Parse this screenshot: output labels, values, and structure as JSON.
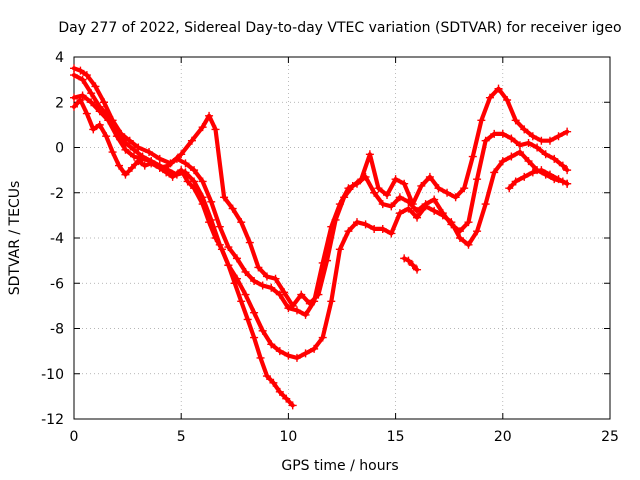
{
  "chart_data": {
    "type": "scatter",
    "title": "Day 277 of 2022, Sidereal Day-to-day VTEC variation (SDTVAR) for receiver igeo",
    "xlabel": "GPS time / hours",
    "ylabel": "SDTVAR / TECUs",
    "xlim": [
      0,
      25
    ],
    "ylim": [
      -12,
      4
    ],
    "xticks": [
      0,
      5,
      10,
      15,
      20,
      25
    ],
    "xtick_labels": [
      "0",
      "5",
      "10",
      "15",
      "20",
      "25"
    ],
    "yticks": [
      4,
      2,
      0,
      -2,
      -4,
      -6,
      -8,
      -10,
      -12
    ],
    "ytick_labels": [
      "4",
      "2",
      "0",
      "-2",
      "-4",
      "-6",
      "-8",
      "-10",
      "-12"
    ],
    "grid": true,
    "color": "#ff0000",
    "marker": "+",
    "series": [
      {
        "name": "trace-1",
        "x": [
          0,
          0.3,
          0.6,
          1,
          1.4,
          1.8,
          2.2,
          2.6,
          3,
          3.5,
          4,
          4.5,
          5,
          5.5,
          6,
          6.3,
          6.6,
          7,
          7.4,
          7.8,
          8.2,
          8.6,
          9,
          9.4,
          9.8,
          10.2,
          10.6,
          11,
          11.4,
          11.8,
          12.2,
          12.6,
          13,
          13.4,
          13.8,
          14.2,
          14.6,
          15,
          15.4,
          15.8,
          16.2,
          16.6,
          17,
          17.4,
          17.8,
          18.2,
          18.6,
          19,
          19.4,
          19.8,
          20.2,
          20.6,
          21,
          21.4,
          21.8,
          22.2,
          22.6,
          23
        ],
        "y": [
          3.5,
          3.4,
          3.2,
          2.7,
          2,
          1.2,
          0.6,
          0.3,
          0,
          -0.2,
          -0.5,
          -0.7,
          -0.3,
          0.3,
          0.9,
          1.4,
          0.8,
          -2.2,
          -2.7,
          -3.3,
          -4.2,
          -5.3,
          -5.7,
          -5.8,
          -6.4,
          -7,
          -6.5,
          -6.9,
          -6.5,
          -5,
          -3.2,
          -2.2,
          -1.7,
          -1.4,
          -0.3,
          -1.8,
          -2.1,
          -1.4,
          -1.6,
          -2.5,
          -1.7,
          -1.3,
          -1.8,
          -2,
          -2.2,
          -1.8,
          -0.4,
          1.2,
          2.2,
          2.6,
          2.1,
          1.2,
          0.8,
          0.5,
          0.3,
          0.3,
          0.5,
          0.7
        ]
      },
      {
        "name": "trace-2",
        "x": [
          0,
          0.4,
          0.8,
          1.2,
          1.6,
          2,
          2.4,
          2.8,
          3.2,
          3.6,
          4,
          4.4,
          4.8,
          5.2,
          5.6,
          6,
          6.4,
          6.8,
          7.2,
          7.6,
          8,
          8.4,
          8.8,
          9.2,
          9.6,
          10,
          10.4,
          10.8,
          11.2,
          11.6,
          12,
          12.4,
          12.8,
          13.2,
          13.6,
          14,
          14.4,
          14.8,
          15.2,
          15.6,
          16,
          16.4,
          16.8,
          17.2,
          17.6,
          18,
          18.4,
          18.8,
          19.2,
          19.6,
          20,
          20.4,
          20.8,
          21.2,
          21.6,
          22,
          22.4,
          22.8,
          23
        ],
        "y": [
          3.2,
          3,
          2.4,
          1.8,
          1.4,
          0.7,
          0.2,
          -0.1,
          -0.4,
          -0.6,
          -0.9,
          -0.8,
          -0.5,
          -0.7,
          -1,
          -1.5,
          -2.4,
          -3.5,
          -4.4,
          -4.9,
          -5.5,
          -5.9,
          -6.1,
          -6.2,
          -6.5,
          -7.1,
          -7.2,
          -7.4,
          -6.8,
          -5.1,
          -3.5,
          -2.5,
          -1.8,
          -1.6,
          -1.3,
          -2,
          -2.5,
          -2.6,
          -2.2,
          -2.4,
          -2.8,
          -2.5,
          -2.3,
          -2.9,
          -3.4,
          -3.7,
          -3.3,
          -1.4,
          0.3,
          0.6,
          0.6,
          0.4,
          0.1,
          0.2,
          0,
          -0.3,
          -0.5,
          -0.8,
          -1
        ]
      },
      {
        "name": "trace-3",
        "x": [
          0,
          0.4,
          0.8,
          1.2,
          1.6,
          2,
          2.4,
          2.8,
          3.2,
          3.6,
          4,
          4.4,
          4.8,
          5.2,
          5.6,
          6,
          6.4,
          6.8,
          7.2,
          7.6,
          8,
          8.4,
          8.8,
          9.2,
          9.6,
          10,
          10.4,
          10.8,
          11.2,
          11.6,
          12,
          12.4,
          12.8,
          13.2,
          13.6,
          14,
          14.4,
          14.8,
          15.2,
          15.6,
          16,
          16.4,
          16.8,
          17.2,
          17.6,
          18,
          18.4,
          18.8,
          19.2,
          19.6,
          20,
          20.4,
          20.8,
          21.2,
          21.6,
          22,
          22.4,
          22.8,
          23
        ],
        "y": [
          2.2,
          2.3,
          2,
          1.6,
          1.2,
          0.5,
          -0.1,
          -0.4,
          -0.5,
          -0.6,
          -0.8,
          -1,
          -1.2,
          -1.1,
          -1.5,
          -2.2,
          -3.2,
          -4.3,
          -5.2,
          -5.8,
          -6.5,
          -7.3,
          -8.1,
          -8.7,
          -9,
          -9.2,
          -9.3,
          -9.1,
          -8.9,
          -8.4,
          -6.8,
          -4.5,
          -3.7,
          -3.3,
          -3.4,
          -3.6,
          -3.6,
          -3.8,
          -2.9,
          -2.7,
          -3.1,
          -2.6,
          -2.8,
          -3,
          -3.3,
          -4,
          -4.3,
          -3.7,
          -2.5,
          -1.1,
          -0.6,
          -0.4,
          -0.2,
          -0.6,
          -1,
          -1.2,
          -1.4,
          -1.5,
          -1.6
        ]
      },
      {
        "name": "trace-4",
        "x": [
          0,
          0.3,
          0.6,
          0.9,
          1.2,
          1.5,
          1.8,
          2.1,
          2.4,
          2.7,
          3,
          3.3,
          3.6,
          4,
          4.3,
          4.6,
          5,
          5.3,
          5.6,
          6,
          6.3,
          6.6,
          6.9,
          7.2,
          7.5,
          7.8,
          8.1,
          8.4,
          8.7,
          9,
          9.3,
          9.6,
          9.9,
          10.2
        ],
        "y": [
          1.8,
          2.1,
          1.5,
          0.8,
          1,
          0.5,
          -0.2,
          -0.8,
          -1.2,
          -0.9,
          -0.6,
          -0.8,
          -0.7,
          -0.9,
          -1.1,
          -1.3,
          -1,
          -1.5,
          -1.8,
          -2.5,
          -3.3,
          -4,
          -4.5,
          -5.2,
          -6,
          -6.8,
          -7.6,
          -8.4,
          -9.3,
          -10.1,
          -10.4,
          -10.8,
          -11.1,
          -11.4
        ]
      },
      {
        "name": "trace-5",
        "x": [
          15.4,
          15.6,
          15.8,
          16
        ],
        "y": [
          -4.9,
          -5,
          -5.2,
          -5.4
        ]
      },
      {
        "name": "trace-6",
        "x": [
          20.3,
          20.6,
          21,
          21.4,
          21.8,
          22.2,
          22.6,
          23
        ],
        "y": [
          -1.8,
          -1.5,
          -1.3,
          -1.1,
          -1,
          -1.2,
          -1.4,
          -1.6
        ]
      }
    ]
  }
}
